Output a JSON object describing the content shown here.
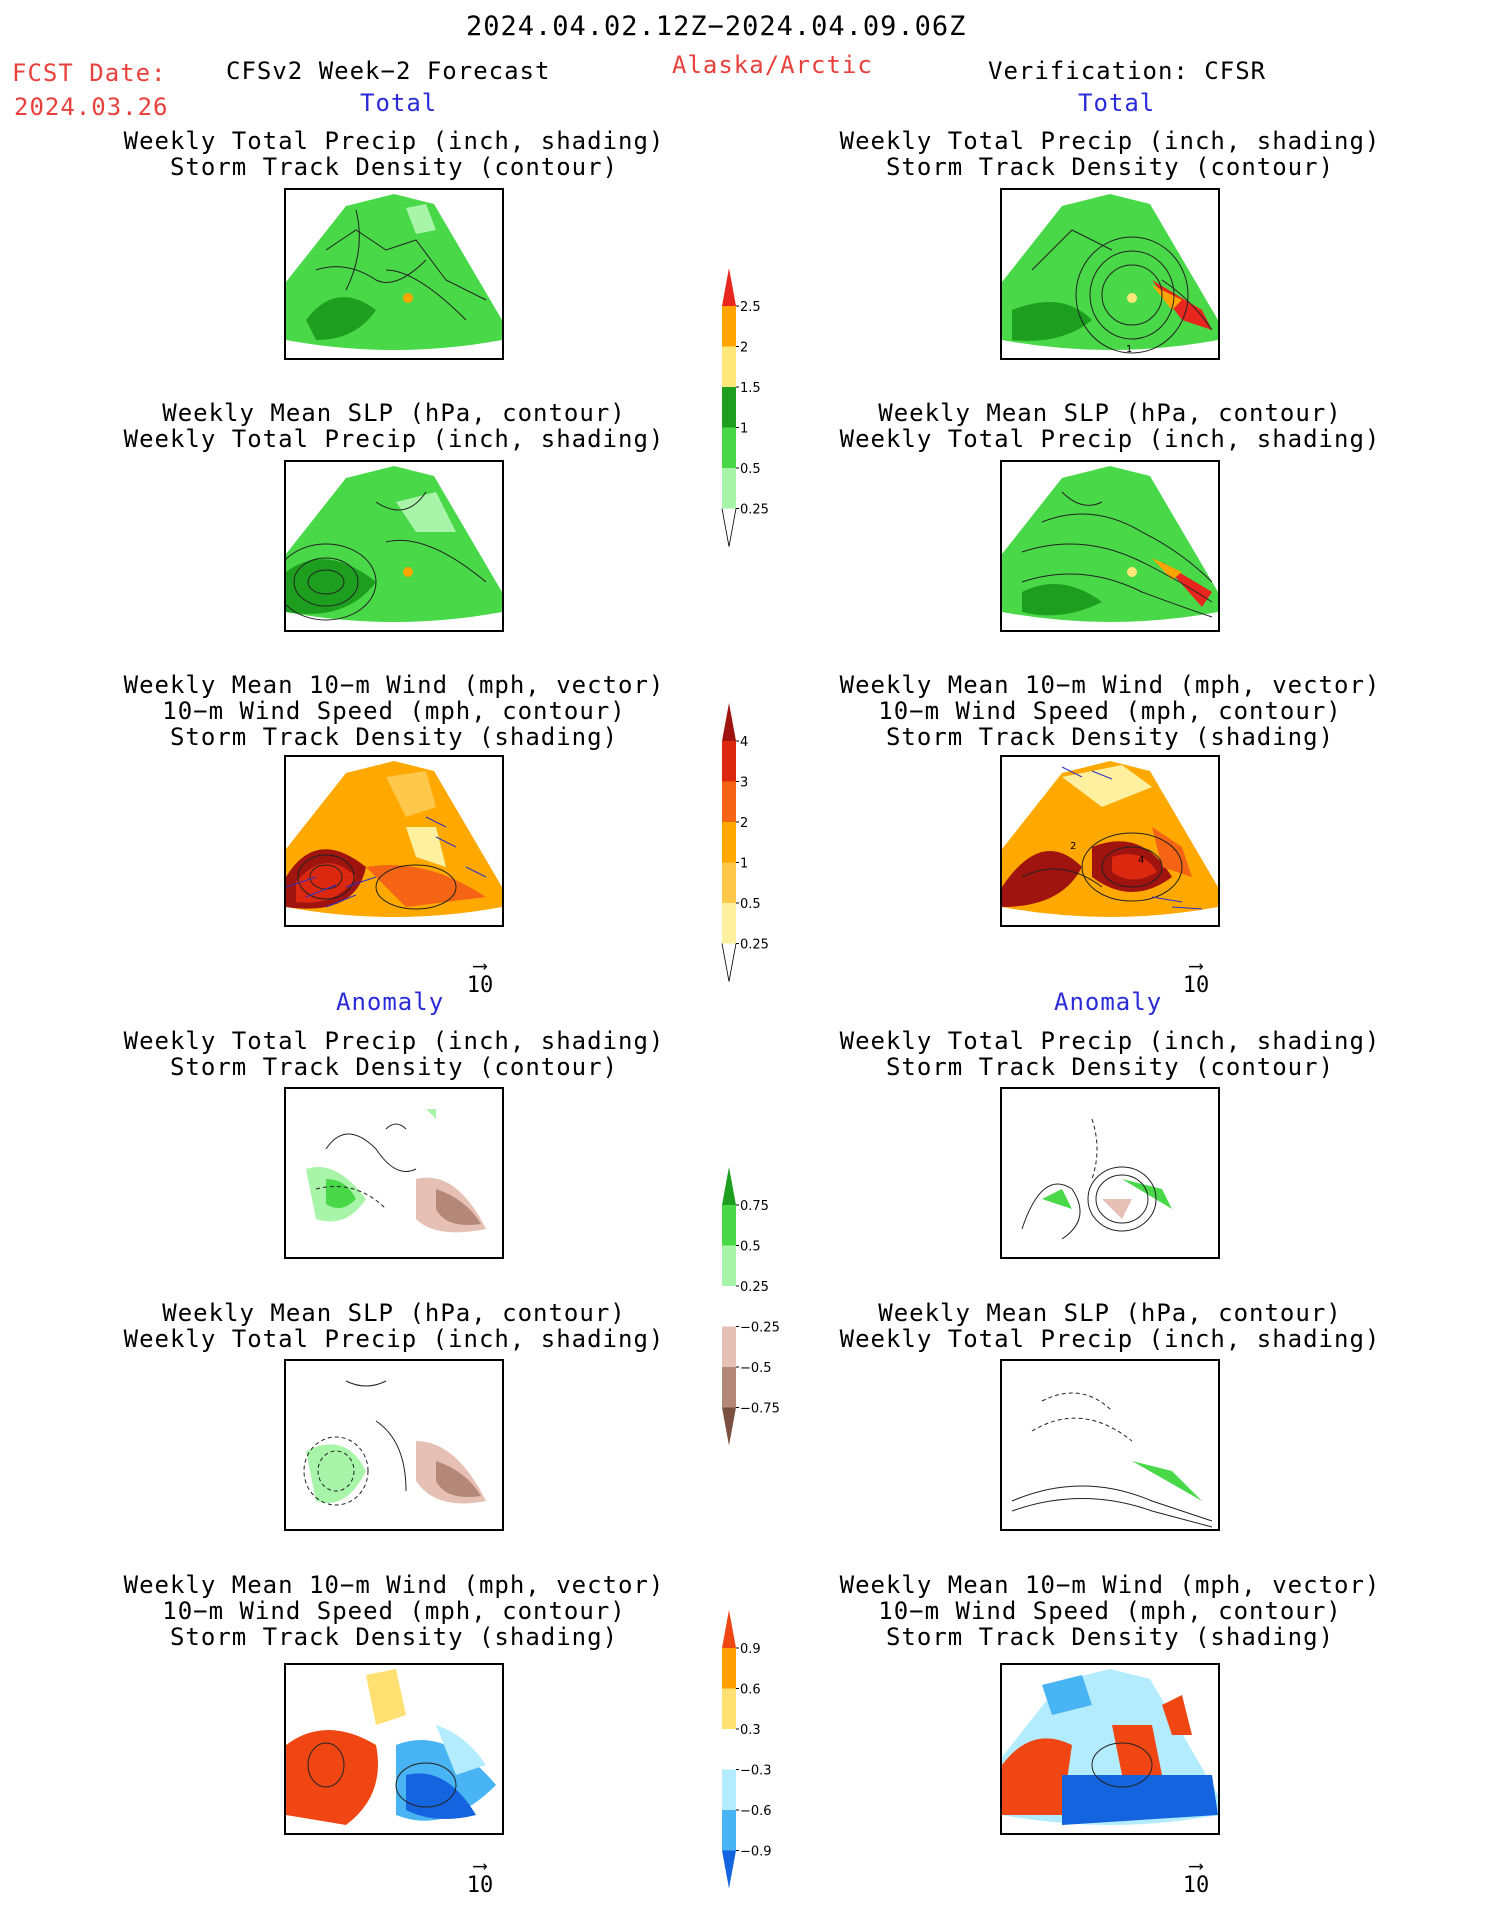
{
  "header": {
    "period": "2024.04.02.12Z−2024.04.09.06Z",
    "fcst_label": "FCST Date:",
    "fcst_date": "2024.03.26",
    "forecast_title": "CFSv2 Week−2 Forecast",
    "region": "Alaska/Arctic",
    "verification": "Verification: CFSR"
  },
  "sections": {
    "total": "Total",
    "anomaly": "Anomaly"
  },
  "titles": {
    "precip_storm": [
      "Weekly Total Precip (inch, shading)",
      "Storm Track Density (contour)"
    ],
    "slp_precip": [
      "Weekly Mean SLP (hPa, contour)",
      "Weekly Total Precip (inch, shading)"
    ],
    "wind_storm": [
      "Weekly Mean 10−m Wind (mph, vector)",
      "10−m Wind Speed (mph, contour)",
      "Storm Track Density (shading)"
    ]
  },
  "vector_ref": "10",
  "colorbars": {
    "precip_total": {
      "labels": [
        "2.5",
        "2",
        "1.5",
        "1",
        "0.5",
        "0.25"
      ],
      "colors": [
        "#e8261e",
        "#ffa400",
        "#ffe77a",
        "#1e9e1e",
        "#48d848",
        "#a8f4a8"
      ]
    },
    "storm_total": {
      "labels": [
        "4",
        "3",
        "2",
        "1",
        "0.5",
        "0.25"
      ],
      "colors": [
        "#a0140f",
        "#dd2810",
        "#f46414",
        "#ffa800",
        "#ffc84a",
        "#fff0a0"
      ]
    },
    "precip_anom": {
      "labels": [
        "0.75",
        "0.5",
        "0.25",
        "−0.25",
        "−0.5",
        "−0.75"
      ],
      "colors": [
        "#1e9e1e",
        "#48d848",
        "#a8f4a8",
        "#ffffff",
        "#e6c0b4",
        "#b48878",
        "#7a5040"
      ]
    },
    "storm_anom": {
      "labels": [
        "0.9",
        "0.6",
        "0.3",
        "−0.3",
        "−0.6",
        "−0.9"
      ],
      "colors": [
        "#f04614",
        "#ffa000",
        "#ffe070",
        "#ffffff",
        "#b4ecff",
        "#48b4f4",
        "#1464e0"
      ]
    }
  },
  "panel_labels": {
    "v_precip_total": "1",
    "v_wind_total_a": "2",
    "v_wind_total_b": "4"
  }
}
